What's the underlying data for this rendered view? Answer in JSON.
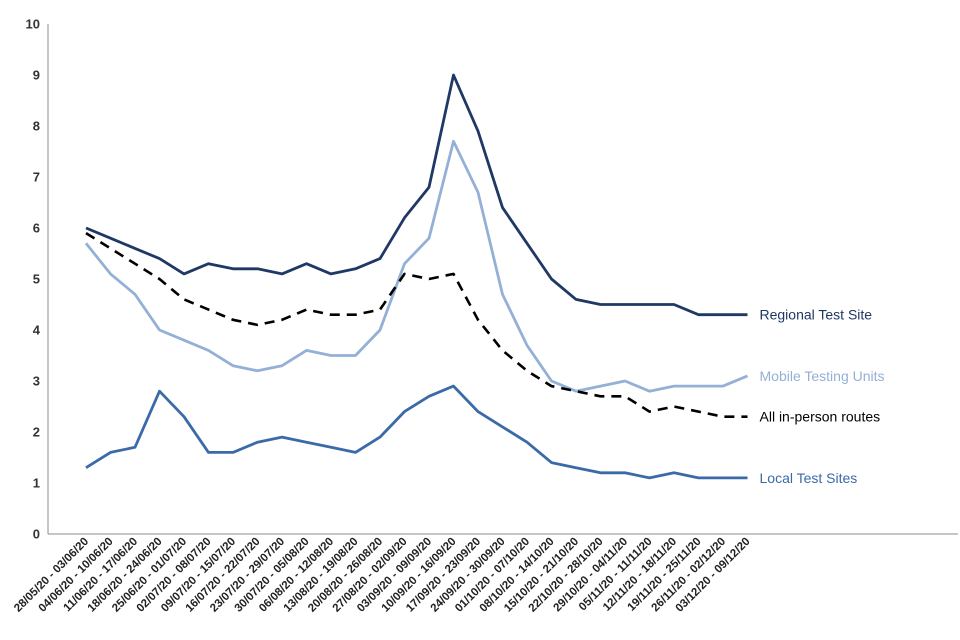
{
  "chart_data": {
    "type": "line",
    "title": "",
    "xlabel": "",
    "ylabel": "",
    "ylim": [
      0,
      10
    ],
    "yticks": [
      0,
      1,
      2,
      3,
      4,
      5,
      6,
      7,
      8,
      9,
      10
    ],
    "grid": false,
    "categories": [
      "28/05/20 - 03/06/20",
      "04/06/20 - 10/06/20",
      "11/06/20 - 17/06/20",
      "18/06/20 - 24/06/20",
      "25/06/20 - 01/07/20",
      "02/07/20 - 08/07/20",
      "09/07/20 - 15/07/20",
      "16/07/20 - 22/07/20",
      "23/07/20 - 29/07/20",
      "30/07/20 - 05/08/20",
      "06/08/20 - 12/08/20",
      "13/08/20 - 19/08/20",
      "20/08/20 - 26/08/20",
      "27/08/20 - 02/09/20",
      "03/09/20 - 09/09/20",
      "10/09/20 - 16/09/20",
      "17/09/20 - 23/09/20",
      "24/09/20 - 30/09/20",
      "01/10/20 - 07/10/20",
      "08/10/20 - 14/10/20",
      "15/10/20 - 21/10/20",
      "22/10/20 - 28/10/20",
      "29/10/20 - 04/11/20",
      "05/11/20 - 11/11/20",
      "12/11/20 - 18/11/20",
      "19/11/20 - 25/11/20",
      "26/11/20 - 02/12/20",
      "03/12/20 - 09/12/20"
    ],
    "series": [
      {
        "name": "Regional Test Site",
        "color": "#1f3864",
        "dash": false,
        "values": [
          6.0,
          5.8,
          5.6,
          5.4,
          5.1,
          5.3,
          5.2,
          5.2,
          5.1,
          5.3,
          5.1,
          5.2,
          5.4,
          6.2,
          6.8,
          9.0,
          7.9,
          6.4,
          5.7,
          5.0,
          4.6,
          4.5,
          4.5,
          4.5,
          4.5,
          4.3,
          4.3,
          4.3
        ]
      },
      {
        "name": "Mobile Testing Units",
        "color": "#94b0d6",
        "dash": false,
        "values": [
          5.7,
          5.1,
          4.7,
          4.0,
          3.8,
          3.6,
          3.3,
          3.2,
          3.3,
          3.6,
          3.5,
          3.5,
          4.0,
          5.3,
          5.8,
          7.7,
          6.7,
          4.7,
          3.7,
          3.0,
          2.8,
          2.9,
          3.0,
          2.8,
          2.9,
          2.9,
          2.9,
          3.1
        ]
      },
      {
        "name": "All in-person routes",
        "color": "#000000",
        "dash": true,
        "values": [
          5.9,
          5.6,
          5.3,
          5.0,
          4.6,
          4.4,
          4.2,
          4.1,
          4.2,
          4.4,
          4.3,
          4.3,
          4.4,
          5.1,
          5.0,
          5.1,
          4.2,
          3.6,
          3.2,
          2.9,
          2.8,
          2.7,
          2.7,
          2.4,
          2.5,
          2.4,
          2.3,
          2.3
        ]
      },
      {
        "name": "Local Test Sites",
        "color": "#3b6aa8",
        "dash": false,
        "values": [
          1.3,
          1.6,
          1.7,
          2.8,
          2.3,
          1.6,
          1.6,
          1.8,
          1.9,
          1.8,
          1.7,
          1.6,
          1.9,
          2.4,
          2.7,
          2.9,
          2.4,
          2.1,
          1.8,
          1.4,
          1.3,
          1.2,
          1.2,
          1.1,
          1.2,
          1.1,
          1.1,
          1.1
        ]
      }
    ]
  }
}
